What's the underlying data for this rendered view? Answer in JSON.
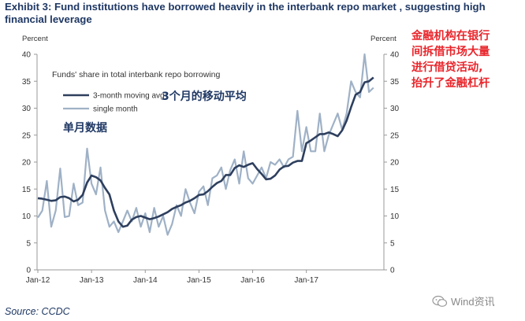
{
  "header": {
    "title": "Exhibit 3: Fund institutions have borrowed heavily in the interbank repo market , suggesting high financial leverage"
  },
  "chart_data": {
    "type": "line",
    "title": "Funds' share in total interbank repo borrowing",
    "y_unit_left": "Percent",
    "y_unit_right": "Percent",
    "ylim": [
      0,
      40
    ],
    "yticks": [
      0,
      5,
      10,
      15,
      20,
      25,
      30,
      35,
      40
    ],
    "x_tick_labels": [
      "Jan-12",
      "Jan-13",
      "Jan-14",
      "Jan-15",
      "Jan-16",
      "Jan-17"
    ],
    "x_tick_months": [
      0,
      12,
      24,
      36,
      48,
      60
    ],
    "grid": false,
    "legend_position": "top-left",
    "series": [
      {
        "name": "3-month moving avg",
        "color": "#2e3f5e",
        "values": [
          13.3,
          13.2,
          13.0,
          12.8,
          12.9,
          13.5,
          13.6,
          13.3,
          12.7,
          13.0,
          13.9,
          16.2,
          17.5,
          17.2,
          16.6,
          15.2,
          14.0,
          11.0,
          9.0,
          8.0,
          8.2,
          9.3,
          9.8,
          10.0,
          9.7,
          9.4,
          9.6,
          9.9,
          10.3,
          10.7,
          11.3,
          11.7,
          12.0,
          12.5,
          12.8,
          13.3,
          13.9,
          14.0,
          14.6,
          15.4,
          16.1,
          16.5,
          17.6,
          17.6,
          18.9,
          19.4,
          19.1,
          19.5,
          19.8,
          18.7,
          17.8,
          16.8,
          16.9,
          17.5,
          18.6,
          19.2,
          19.3,
          19.9,
          20.2,
          20.2,
          23.5,
          24.0,
          24.6,
          25.2,
          25.2,
          25.5,
          25.2,
          24.8,
          25.9,
          27.7,
          30.2,
          32.5,
          33.0,
          34.8,
          35.0,
          35.7
        ]
      },
      {
        "name": "single month",
        "color": "#9fb1c6",
        "values": [
          9.7,
          11.0,
          16.5,
          8.0,
          11.0,
          18.8,
          9.8,
          10.0,
          16.0,
          12.0,
          12.5,
          22.5,
          16.0,
          14.0,
          19.0,
          11.0,
          8.0,
          9.0,
          7.0,
          9.0,
          11.0,
          9.0,
          11.5,
          8.0,
          10.5,
          7.0,
          11.5,
          8.0,
          10.0,
          6.5,
          8.5,
          12.0,
          10.0,
          15.0,
          12.5,
          10.5,
          14.5,
          15.5,
          12.0,
          17.0,
          17.5,
          19.0,
          15.0,
          18.5,
          20.5,
          16.0,
          22.0,
          17.0,
          16.0,
          17.5,
          19.0,
          17.0,
          20.0,
          19.5,
          20.5,
          19.0,
          20.5,
          21.0,
          29.5,
          22.0,
          26.5,
          22.0,
          22.0,
          29.0,
          22.0,
          25.0,
          27.0,
          29.0,
          26.0,
          29.0,
          35.0,
          33.0,
          32.0,
          40.0,
          33.0,
          33.8
        ]
      }
    ]
  },
  "annotations": {
    "ma_label_cn": "3个月的移动平均",
    "single_label_cn": "单月数据",
    "note_cn": [
      "金融机构在银行",
      "间拆借市场大量",
      "进行借贷活动,",
      "抬升了金融杠杆"
    ]
  },
  "footer": {
    "source": "Source: CCDC",
    "watermark": "Wind资讯"
  }
}
